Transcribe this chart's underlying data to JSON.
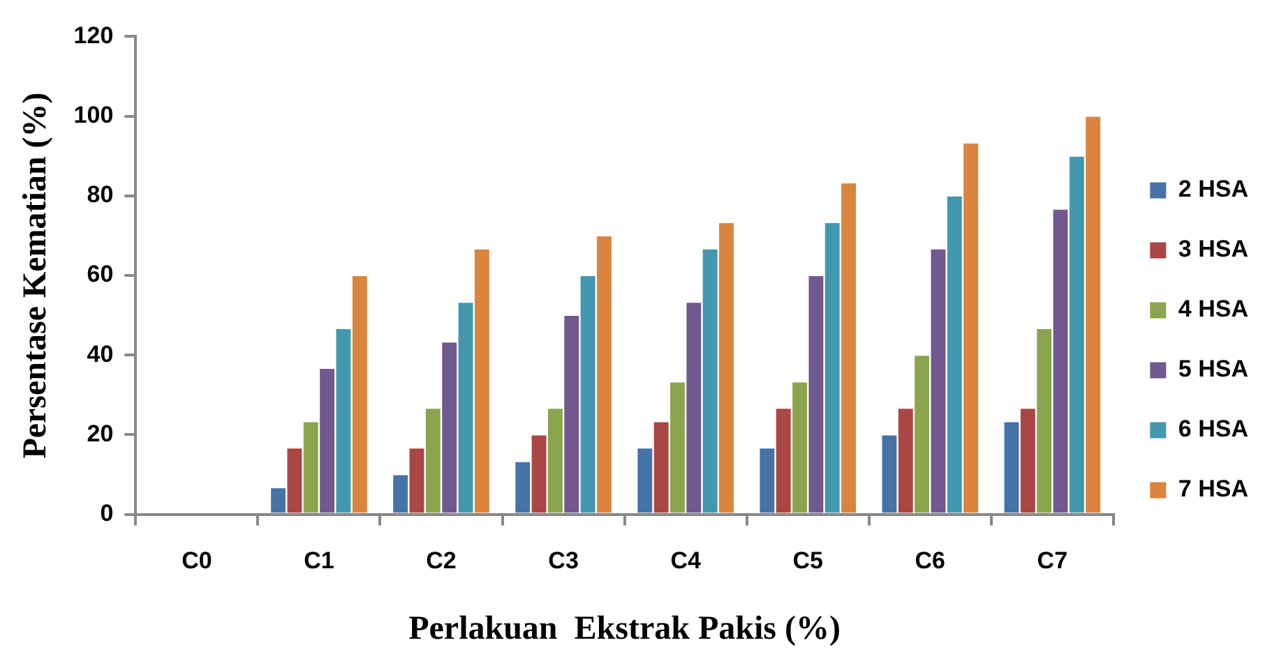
{
  "chart_data": {
    "type": "bar",
    "xlabel": "Perlakuan  Ekstrak Pakis (%)",
    "ylabel": "Persentase Kematian (%)",
    "categories": [
      "C0",
      "C1",
      "C2",
      "C3",
      "C4",
      "C5",
      "C6",
      "C7"
    ],
    "series": [
      {
        "name": "2 HSA",
        "color": "#4572a7",
        "values": [
          0,
          6.7,
          10,
          13.3,
          16.7,
          16.7,
          20,
          23.3
        ]
      },
      {
        "name": "3 HSA",
        "color": "#aa4643",
        "values": [
          0,
          16.7,
          16.7,
          20,
          23.3,
          26.7,
          26.7,
          26.7
        ]
      },
      {
        "name": "4 HSA",
        "color": "#89a54e",
        "values": [
          0,
          23.3,
          26.7,
          26.7,
          33.3,
          33.3,
          40,
          46.7
        ]
      },
      {
        "name": "5 HSA",
        "color": "#71588f",
        "values": [
          0,
          36.7,
          43.3,
          50,
          53.3,
          60,
          66.7,
          76.7
        ]
      },
      {
        "name": "6 HSA",
        "color": "#4198af",
        "values": [
          0,
          46.7,
          53.3,
          60,
          66.7,
          73.3,
          80,
          90
        ]
      },
      {
        "name": "7 HSA",
        "color": "#db843d",
        "values": [
          0,
          60,
          66.7,
          70,
          73.3,
          83.3,
          93.3,
          100
        ]
      }
    ],
    "ylim": [
      0,
      120
    ],
    "yticks": [
      0,
      20,
      40,
      60,
      80,
      100,
      120
    ],
    "grid": false,
    "legend": "right"
  }
}
